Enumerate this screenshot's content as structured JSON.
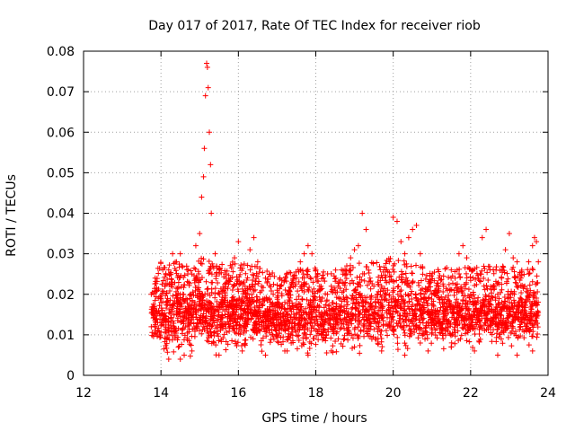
{
  "chart_data": {
    "type": "scatter",
    "title": "Day 017 of 2017, Rate Of TEC Index for receiver riob",
    "xlabel": "GPS time / hours",
    "ylabel": "ROTI / TECUs",
    "xlim": [
      12,
      24
    ],
    "ylim": [
      0,
      0.08
    ],
    "xticks": [
      12,
      14,
      16,
      18,
      20,
      22,
      24
    ],
    "yticks": [
      0,
      0.01,
      0.02,
      0.03,
      0.04,
      0.05,
      0.06,
      0.07,
      0.08
    ],
    "xtick_labels": [
      "12",
      "14",
      "16",
      "18",
      "20",
      "22",
      "24"
    ],
    "ytick_labels": [
      "0",
      "0.01",
      "0.02",
      "0.03",
      "0.04",
      "0.05",
      "0.06",
      "0.07",
      "0.08"
    ],
    "grid": true,
    "marker": "+",
    "color": "#ff0000",
    "series": [
      {
        "name": "ROTI",
        "points": [
          [
            13.75,
            0.012
          ],
          [
            13.75,
            0.02
          ],
          [
            13.8,
            0.015
          ],
          [
            13.85,
            0.024
          ],
          [
            13.9,
            0.01
          ],
          [
            14.0,
            0.018
          ],
          [
            14.1,
            0.022
          ],
          [
            14.2,
            0.026
          ],
          [
            14.3,
            0.03
          ],
          [
            14.4,
            0.028
          ],
          [
            14.5,
            0.03
          ],
          [
            14.6,
            0.005
          ],
          [
            14.7,
            0.026
          ],
          [
            14.8,
            0.025
          ],
          [
            14.9,
            0.032
          ],
          [
            15.0,
            0.035
          ],
          [
            15.05,
            0.044
          ],
          [
            15.1,
            0.049
          ],
          [
            15.12,
            0.056
          ],
          [
            15.15,
            0.069
          ],
          [
            15.18,
            0.077
          ],
          [
            15.2,
            0.076
          ],
          [
            15.22,
            0.071
          ],
          [
            15.25,
            0.06
          ],
          [
            15.28,
            0.052
          ],
          [
            15.3,
            0.04
          ],
          [
            15.4,
            0.03
          ],
          [
            15.5,
            0.026
          ],
          [
            15.6,
            0.017
          ],
          [
            15.7,
            0.023
          ],
          [
            15.8,
            0.024
          ],
          [
            15.9,
            0.029
          ],
          [
            16.0,
            0.033
          ],
          [
            16.1,
            0.018
          ],
          [
            16.2,
            0.02
          ],
          [
            16.3,
            0.031
          ],
          [
            16.4,
            0.034
          ],
          [
            16.5,
            0.028
          ],
          [
            16.6,
            0.022
          ],
          [
            16.7,
            0.024
          ],
          [
            16.8,
            0.019
          ],
          [
            16.9,
            0.02
          ],
          [
            17.0,
            0.021
          ],
          [
            17.1,
            0.022
          ],
          [
            17.2,
            0.018
          ],
          [
            17.3,
            0.02
          ],
          [
            17.4,
            0.023
          ],
          [
            17.5,
            0.024
          ],
          [
            17.6,
            0.028
          ],
          [
            17.7,
            0.03
          ],
          [
            17.8,
            0.032
          ],
          [
            17.9,
            0.03
          ],
          [
            18.0,
            0.026
          ],
          [
            18.1,
            0.022
          ],
          [
            18.2,
            0.024
          ],
          [
            18.3,
            0.02
          ],
          [
            18.4,
            0.022
          ],
          [
            18.5,
            0.021
          ],
          [
            18.6,
            0.023
          ],
          [
            18.7,
            0.025
          ],
          [
            18.8,
            0.027
          ],
          [
            18.9,
            0.029
          ],
          [
            19.0,
            0.031
          ],
          [
            19.1,
            0.032
          ],
          [
            19.2,
            0.04
          ],
          [
            19.3,
            0.036
          ],
          [
            19.4,
            0.024
          ],
          [
            19.5,
            0.022
          ],
          [
            19.6,
            0.02
          ],
          [
            19.7,
            0.022
          ],
          [
            19.8,
            0.026
          ],
          [
            19.9,
            0.028
          ],
          [
            20.0,
            0.039
          ],
          [
            20.1,
            0.038
          ],
          [
            20.2,
            0.033
          ],
          [
            20.3,
            0.03
          ],
          [
            20.4,
            0.034
          ],
          [
            20.5,
            0.036
          ],
          [
            20.6,
            0.037
          ],
          [
            20.7,
            0.03
          ],
          [
            20.8,
            0.02
          ],
          [
            20.9,
            0.019
          ],
          [
            21.0,
            0.02
          ],
          [
            21.1,
            0.021
          ],
          [
            21.2,
            0.018
          ],
          [
            21.3,
            0.022
          ],
          [
            21.4,
            0.021
          ],
          [
            21.5,
            0.026
          ],
          [
            21.6,
            0.024
          ],
          [
            21.7,
            0.03
          ],
          [
            21.8,
            0.032
          ],
          [
            21.9,
            0.029
          ],
          [
            22.0,
            0.02
          ],
          [
            22.1,
            0.019
          ],
          [
            22.2,
            0.024
          ],
          [
            22.3,
            0.034
          ],
          [
            22.4,
            0.036
          ],
          [
            22.5,
            0.026
          ],
          [
            22.6,
            0.022
          ],
          [
            22.7,
            0.02
          ],
          [
            22.8,
            0.024
          ],
          [
            22.9,
            0.031
          ],
          [
            23.0,
            0.035
          ],
          [
            23.1,
            0.029
          ],
          [
            23.2,
            0.028
          ],
          [
            23.3,
            0.024
          ],
          [
            23.4,
            0.022
          ],
          [
            23.5,
            0.028
          ],
          [
            23.6,
            0.032
          ],
          [
            23.65,
            0.034
          ],
          [
            23.7,
            0.033
          ],
          [
            23.75,
            0.028
          ],
          [
            14.2,
            0.004
          ],
          [
            14.5,
            0.004
          ],
          [
            14.8,
            0.006
          ],
          [
            15.5,
            0.005
          ],
          [
            16.1,
            0.006
          ],
          [
            16.7,
            0.005
          ],
          [
            17.2,
            0.006
          ],
          [
            17.8,
            0.005
          ],
          [
            18.4,
            0.006
          ],
          [
            19.0,
            0.007
          ],
          [
            19.7,
            0.006
          ],
          [
            20.3,
            0.005
          ],
          [
            20.9,
            0.006
          ],
          [
            21.5,
            0.007
          ],
          [
            22.1,
            0.006
          ],
          [
            22.7,
            0.005
          ],
          [
            23.2,
            0.005
          ],
          [
            23.6,
            0.006
          ]
        ]
      }
    ],
    "band": [
      [
        13.75,
        0.009,
        0.019
      ],
      [
        14.0,
        0.008,
        0.022
      ],
      [
        14.5,
        0.008,
        0.022
      ],
      [
        15.0,
        0.009,
        0.023
      ],
      [
        15.5,
        0.008,
        0.022
      ],
      [
        16.0,
        0.009,
        0.022
      ],
      [
        16.5,
        0.009,
        0.021
      ],
      [
        17.0,
        0.008,
        0.019
      ],
      [
        17.5,
        0.008,
        0.02
      ],
      [
        18.0,
        0.008,
        0.021
      ],
      [
        18.5,
        0.008,
        0.02
      ],
      [
        19.0,
        0.009,
        0.022
      ],
      [
        19.5,
        0.009,
        0.022
      ],
      [
        20.0,
        0.009,
        0.023
      ],
      [
        20.5,
        0.009,
        0.022
      ],
      [
        21.0,
        0.009,
        0.02
      ],
      [
        21.5,
        0.009,
        0.021
      ],
      [
        22.0,
        0.009,
        0.021
      ],
      [
        22.5,
        0.009,
        0.021
      ],
      [
        23.0,
        0.009,
        0.021
      ],
      [
        23.5,
        0.009,
        0.021
      ],
      [
        23.75,
        0.01,
        0.02
      ]
    ]
  }
}
